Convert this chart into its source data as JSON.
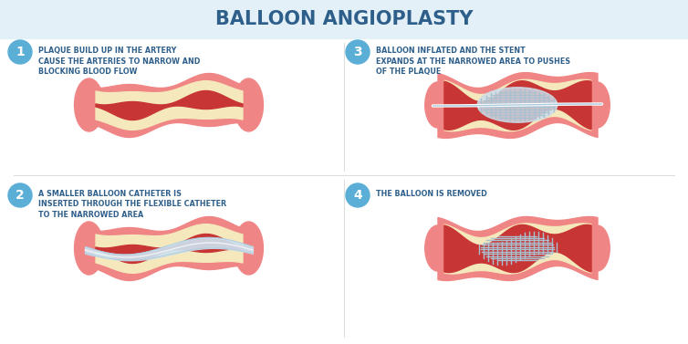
{
  "title": "BALLOON ANGIOPLASTY",
  "title_color": "#2e5f8a",
  "title_bg": "#e4f0f8",
  "bg_color": "#ffffff",
  "steps": [
    {
      "number": "1",
      "text_lines": [
        "PLAQUE BUILD UP IN THE ARTERY",
        "CAUSE THE ARTERIES TO NARROW AND",
        "BLOCKING BLOOD FLOW"
      ]
    },
    {
      "number": "2",
      "text_lines": [
        "A SMALLER BALLOON CATHETER IS",
        "INSERTED THROUGH THE FLEXIBLE CATHETER",
        "TO THE NARROWED AREA"
      ]
    },
    {
      "number": "3",
      "text_lines": [
        "BALLOON INFLATED AND THE STENT",
        "EXPANDS AT THE NARROWED AREA TO PUSHES",
        "OF THE PLAQUE"
      ]
    },
    {
      "number": "4",
      "text_lines": [
        "THE BALLOON IS REMOVED"
      ]
    }
  ],
  "circle_color": "#5bafd6",
  "circle_text_color": "#ffffff",
  "step_text_color": "#2e5f8a",
  "artery_outer_color": "#f08585",
  "artery_mid_color": "#ee7070",
  "artery_inner_color": "#da4444",
  "plaque_color": "#f5e8bc",
  "blood_color": "#c83535",
  "catheter_color": "#cce0ee",
  "catheter_line": "#aaccdd",
  "stent_color": "#ccdde8",
  "stent_wire": "#a8c0d0",
  "stent_wire_dark": "#8aaabb"
}
